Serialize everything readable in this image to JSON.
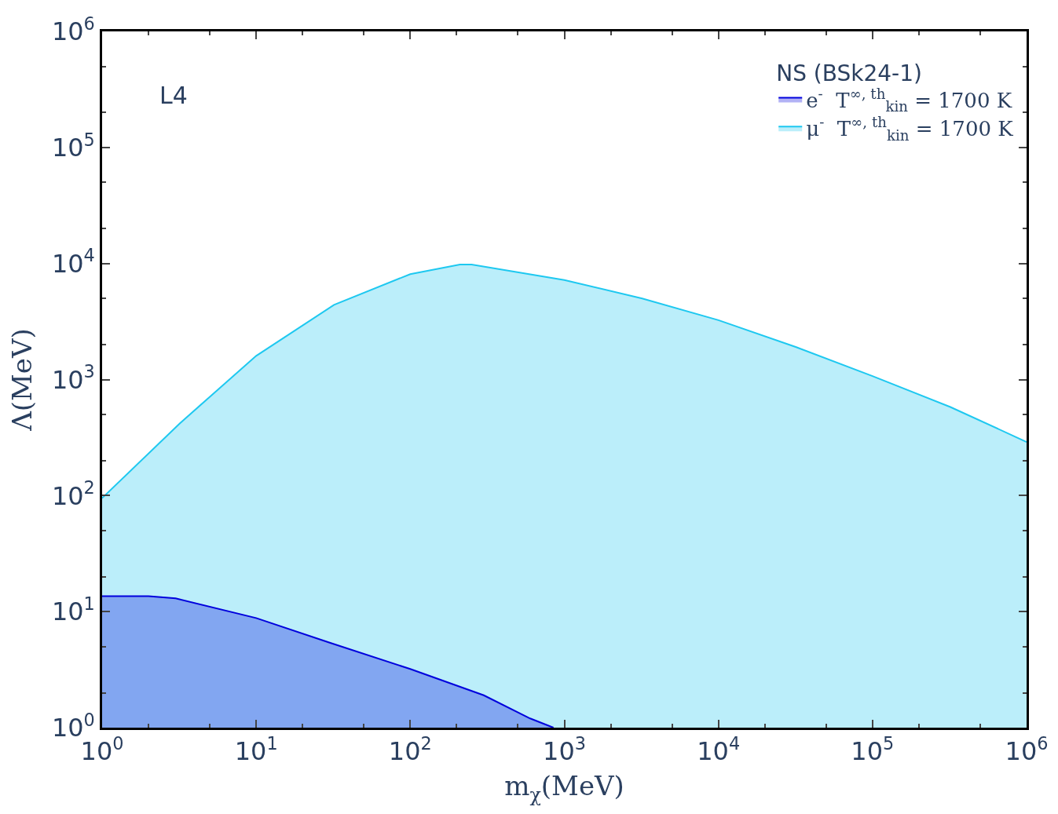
{
  "chart_data": {
    "type": "area",
    "xlabel": "m$_{χ}$(MeV)",
    "ylabel": "Λ(MeV)",
    "legend_title": "NS (BSk24-1)",
    "annotations": [
      "L4"
    ],
    "log": "xy",
    "legend": "top right",
    "xlim": [
      1,
      1000000
    ],
    "ylim": [
      1,
      1000000
    ],
    "xticks": [
      {
        "value": 1,
        "label": "10$^{0}$"
      },
      {
        "value": 10,
        "label": "10$^{1}$"
      },
      {
        "value": 100,
        "label": "10$^{2}$"
      },
      {
        "value": 1000,
        "label": "10$^{3}$"
      },
      {
        "value": 10000,
        "label": "10$^{4}$"
      },
      {
        "value": 100000,
        "label": "10$^{5}$"
      },
      {
        "value": 1000000,
        "label": "10$^{6}$"
      }
    ],
    "yticks": [
      {
        "value": 1,
        "label": "10$^{0}$"
      },
      {
        "value": 10,
        "label": "10$^{1}$"
      },
      {
        "value": 100,
        "label": "10$^{2}$"
      },
      {
        "value": 1000,
        "label": "10$^{3}$"
      },
      {
        "value": 10000,
        "label": "10$^{4}$"
      },
      {
        "value": 100000,
        "label": "10$^{5}$"
      },
      {
        "value": 1000000,
        "label": "10$^{6}$"
      }
    ],
    "series": [
      {
        "name": "e$^{-}$  T$^{∞, th}$$_{kin}$ = 1700 K",
        "color": "#0000dd",
        "x": [
          1,
          2,
          3,
          10,
          30,
          100,
          300,
          600,
          850
        ],
        "values": [
          13.6,
          13.6,
          13,
          8.8,
          5.4,
          3.2,
          1.9,
          1.2,
          1.0
        ]
      },
      {
        "name": "μ$^{-}$  T$^{∞, th}$$_{kin}$ = 1700 K",
        "color": "#1ec8f0",
        "x": [
          1,
          3.2,
          10,
          32,
          100,
          210,
          250,
          1000,
          3200,
          10000,
          32000,
          100000,
          320000,
          1000000
        ],
        "values": [
          95,
          420,
          1600,
          4400,
          8100,
          9800,
          9800,
          7200,
          5000,
          3250,
          1900,
          1070,
          580,
          290
        ]
      }
    ]
  }
}
